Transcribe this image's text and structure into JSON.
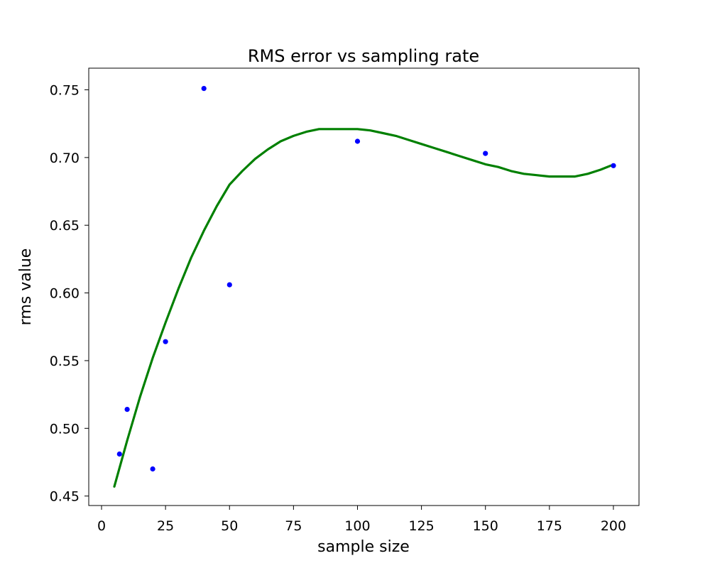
{
  "chart_data": {
    "type": "scatter",
    "title": "RMS error vs sampling rate",
    "xlabel": "sample size",
    "ylabel": "rms value",
    "xlim": [
      -5,
      210
    ],
    "ylim": [
      0.443,
      0.766
    ],
    "xticks": [
      0,
      25,
      50,
      75,
      100,
      125,
      150,
      175,
      200
    ],
    "xtick_labels": [
      "0",
      "25",
      "50",
      "75",
      "100",
      "125",
      "150",
      "175",
      "200"
    ],
    "yticks": [
      0.45,
      0.5,
      0.55,
      0.6,
      0.65,
      0.7,
      0.75
    ],
    "ytick_labels": [
      "0.45",
      "0.50",
      "0.55",
      "0.60",
      "0.65",
      "0.70",
      "0.75"
    ],
    "grid": false,
    "series": [
      {
        "kind": "scatter",
        "color": "#0000ff",
        "x": [
          7,
          10,
          20,
          25,
          40,
          50,
          100,
          150,
          200
        ],
        "y": [
          0.481,
          0.514,
          0.47,
          0.564,
          0.751,
          0.606,
          0.712,
          0.703,
          0.694
        ]
      },
      {
        "kind": "line",
        "color": "#008000",
        "x": [
          5,
          10,
          15,
          20,
          25,
          30,
          35,
          40,
          45,
          50,
          55,
          60,
          65,
          70,
          75,
          80,
          85,
          90,
          95,
          100,
          105,
          110,
          115,
          120,
          125,
          130,
          135,
          140,
          145,
          150,
          155,
          160,
          165,
          170,
          175,
          180,
          185,
          190,
          195,
          199
        ],
        "y": [
          0.457,
          0.491,
          0.523,
          0.552,
          0.578,
          0.603,
          0.626,
          0.646,
          0.664,
          0.68,
          0.69,
          0.699,
          0.706,
          0.712,
          0.716,
          0.719,
          0.721,
          0.721,
          0.721,
          0.721,
          0.72,
          0.718,
          0.716,
          0.713,
          0.71,
          0.707,
          0.704,
          0.701,
          0.698,
          0.695,
          0.693,
          0.69,
          0.688,
          0.687,
          0.686,
          0.686,
          0.686,
          0.688,
          0.691,
          0.694
        ]
      }
    ]
  }
}
